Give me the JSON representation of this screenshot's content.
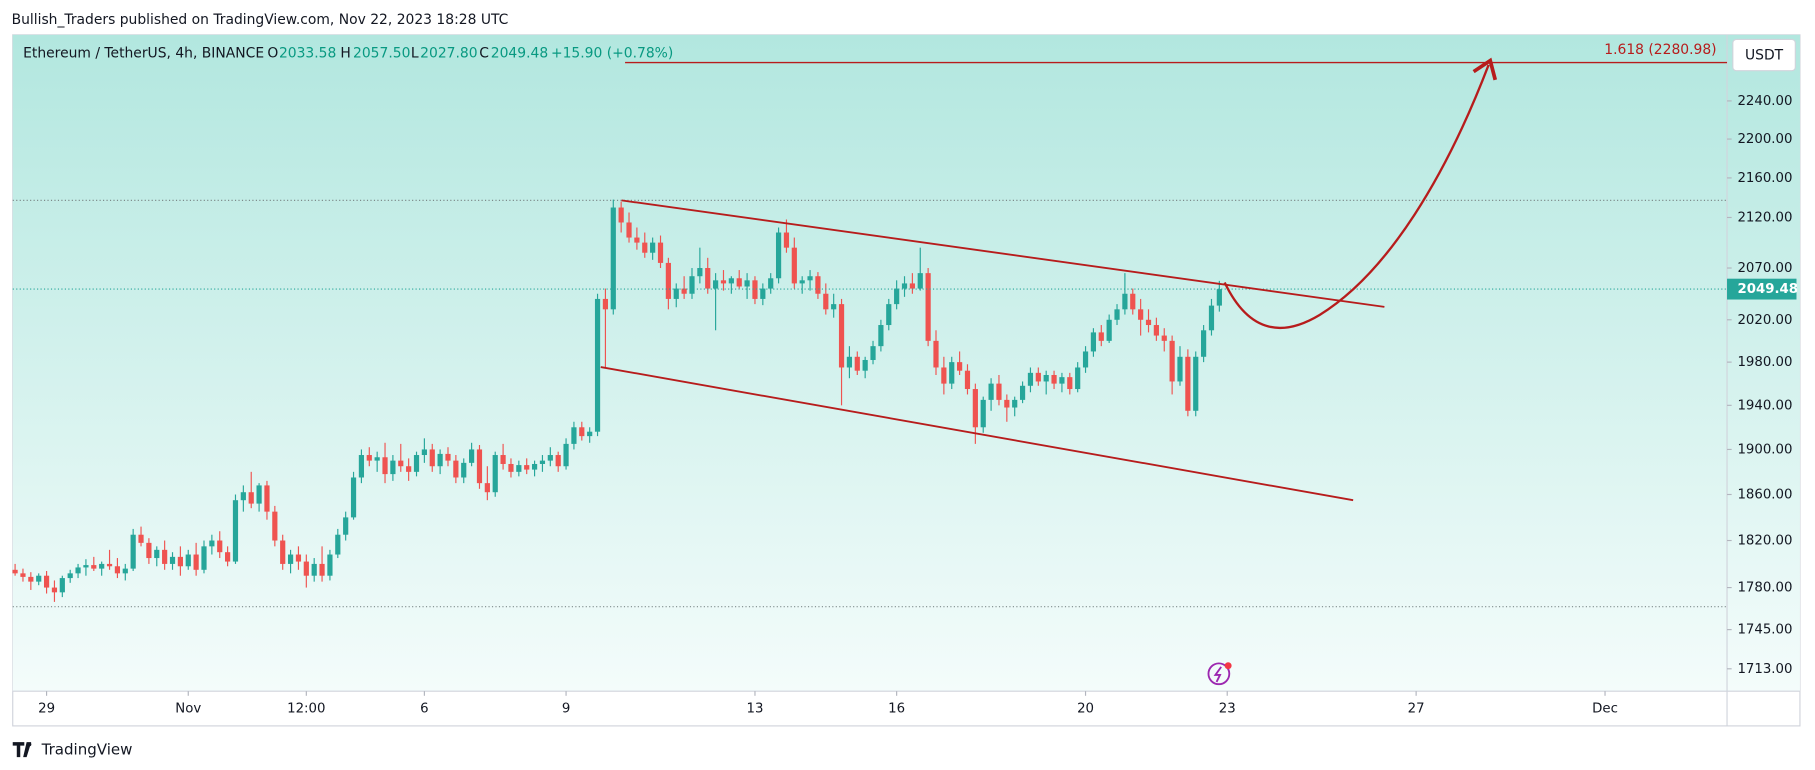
{
  "header": "Bullish_Traders published on TradingView.com, Nov 22, 2023 18:28 UTC",
  "footer": "TradingView",
  "currency_button": "USDT",
  "legend": {
    "symbol": "Ethereum / TetherUS, 4h, BINANCE",
    "open_key": "O",
    "open": "2033.58",
    "high_key": "H",
    "high": "2057.50",
    "low_key": "L",
    "low": "2027.80",
    "close_key": "C",
    "close": "2049.48",
    "change": "+15.90 (+0.78%)"
  },
  "chart_data": {
    "type": "candlestick",
    "log_scale": true,
    "up_color": "#26a69a",
    "down_color": "#ef5350",
    "line_color": "#b71c1c",
    "ylim": [
      1695,
      2311
    ],
    "yticks": [
      {
        "value": 1713,
        "label": "1713.00"
      },
      {
        "value": 1745,
        "label": "1745.00"
      },
      {
        "value": 1780,
        "label": "1780.00"
      },
      {
        "value": 1820,
        "label": "1820.00"
      },
      {
        "value": 1860,
        "label": "1860.00"
      },
      {
        "value": 1900,
        "label": "1900.00"
      },
      {
        "value": 1940,
        "label": "1940.00"
      },
      {
        "value": 1980,
        "label": "1980.00"
      },
      {
        "value": 2020,
        "label": "2020.00"
      },
      {
        "value": 2070,
        "label": "2070.00"
      },
      {
        "value": 2120,
        "label": "2120.00"
      },
      {
        "value": 2160,
        "label": "2160.00"
      },
      {
        "value": 2200,
        "label": "2200.00"
      },
      {
        "value": 2240,
        "label": "2240.00"
      }
    ],
    "xlim": [
      -0.3,
      217.5
    ],
    "xticks": [
      {
        "value": 4,
        "label": "29"
      },
      {
        "value": 22,
        "label": "Nov"
      },
      {
        "value": 37,
        "label": "12:00"
      },
      {
        "value": 52,
        "label": "6"
      },
      {
        "value": 70,
        "label": "9"
      },
      {
        "value": 94,
        "label": "13"
      },
      {
        "value": 112,
        "label": "16"
      },
      {
        "value": 136,
        "label": "20"
      },
      {
        "value": 154,
        "label": "23"
      },
      {
        "value": 178,
        "label": "27"
      },
      {
        "value": 202,
        "label": "Dec"
      }
    ],
    "last_price": {
      "value": 2049.48,
      "label": "2049.48"
    },
    "fib_level": {
      "value": 2280.98,
      "label": "1.618 (2280.98)"
    },
    "ohlc": [
      [
        1795,
        1800,
        1790,
        1792
      ],
      [
        1792,
        1796,
        1785,
        1789
      ],
      [
        1789,
        1793,
        1778,
        1785
      ],
      [
        1785,
        1792,
        1782,
        1790
      ],
      [
        1790,
        1794,
        1775,
        1780
      ],
      [
        1780,
        1786,
        1768,
        1776
      ],
      [
        1776,
        1790,
        1772,
        1788
      ],
      [
        1788,
        1795,
        1784,
        1792
      ],
      [
        1792,
        1800,
        1788,
        1797
      ],
      [
        1797,
        1804,
        1790,
        1799
      ],
      [
        1799,
        1806,
        1794,
        1796
      ],
      [
        1796,
        1802,
        1790,
        1800
      ],
      [
        1800,
        1812,
        1795,
        1798
      ],
      [
        1798,
        1805,
        1788,
        1792
      ],
      [
        1792,
        1800,
        1786,
        1796
      ],
      [
        1796,
        1830,
        1794,
        1825
      ],
      [
        1825,
        1832,
        1815,
        1818
      ],
      [
        1818,
        1822,
        1800,
        1805
      ],
      [
        1805,
        1815,
        1798,
        1812
      ],
      [
        1812,
        1820,
        1795,
        1800
      ],
      [
        1800,
        1810,
        1795,
        1806
      ],
      [
        1806,
        1815,
        1790,
        1798
      ],
      [
        1798,
        1812,
        1795,
        1808
      ],
      [
        1808,
        1818,
        1790,
        1795
      ],
      [
        1795,
        1820,
        1792,
        1815
      ],
      [
        1815,
        1825,
        1808,
        1820
      ],
      [
        1820,
        1828,
        1805,
        1810
      ],
      [
        1810,
        1815,
        1798,
        1802
      ],
      [
        1802,
        1860,
        1800,
        1855
      ],
      [
        1855,
        1868,
        1845,
        1862
      ],
      [
        1862,
        1880,
        1848,
        1852
      ],
      [
        1852,
        1870,
        1845,
        1868
      ],
      [
        1868,
        1872,
        1838,
        1845
      ],
      [
        1845,
        1850,
        1815,
        1820
      ],
      [
        1820,
        1825,
        1795,
        1800
      ],
      [
        1800,
        1812,
        1792,
        1808
      ],
      [
        1808,
        1815,
        1795,
        1802
      ],
      [
        1802,
        1808,
        1780,
        1790
      ],
      [
        1790,
        1805,
        1785,
        1800
      ],
      [
        1800,
        1815,
        1785,
        1790
      ],
      [
        1790,
        1812,
        1786,
        1808
      ],
      [
        1808,
        1830,
        1805,
        1825
      ],
      [
        1825,
        1845,
        1820,
        1840
      ],
      [
        1840,
        1880,
        1838,
        1875
      ],
      [
        1875,
        1900,
        1870,
        1895
      ],
      [
        1895,
        1902,
        1885,
        1890
      ],
      [
        1890,
        1898,
        1880,
        1893
      ],
      [
        1893,
        1906,
        1870,
        1878
      ],
      [
        1878,
        1895,
        1872,
        1890
      ],
      [
        1890,
        1905,
        1880,
        1885
      ],
      [
        1885,
        1892,
        1872,
        1880
      ],
      [
        1880,
        1898,
        1876,
        1895
      ],
      [
        1895,
        1910,
        1888,
        1900
      ],
      [
        1900,
        1905,
        1880,
        1885
      ],
      [
        1885,
        1900,
        1878,
        1896
      ],
      [
        1896,
        1902,
        1885,
        1890
      ],
      [
        1890,
        1895,
        1870,
        1875
      ],
      [
        1875,
        1892,
        1870,
        1888
      ],
      [
        1888,
        1906,
        1885,
        1900
      ],
      [
        1900,
        1904,
        1865,
        1870
      ],
      [
        1870,
        1885,
        1855,
        1862
      ],
      [
        1862,
        1898,
        1858,
        1895
      ],
      [
        1895,
        1905,
        1882,
        1887
      ],
      [
        1887,
        1892,
        1875,
        1880
      ],
      [
        1880,
        1890,
        1876,
        1886
      ],
      [
        1886,
        1892,
        1878,
        1882
      ],
      [
        1882,
        1890,
        1876,
        1887
      ],
      [
        1887,
        1895,
        1880,
        1890
      ],
      [
        1890,
        1902,
        1885,
        1895
      ],
      [
        1895,
        1898,
        1880,
        1885
      ],
      [
        1885,
        1910,
        1882,
        1905
      ],
      [
        1905,
        1925,
        1900,
        1920
      ],
      [
        1920,
        1925,
        1908,
        1912
      ],
      [
        1912,
        1920,
        1906,
        1916
      ],
      [
        1916,
        2045,
        1912,
        2040
      ],
      [
        2040,
        2050,
        1975,
        2030
      ],
      [
        2030,
        2138,
        2025,
        2130
      ],
      [
        2130,
        2136,
        2105,
        2115
      ],
      [
        2115,
        2125,
        2095,
        2100
      ],
      [
        2100,
        2110,
        2088,
        2095
      ],
      [
        2095,
        2105,
        2080,
        2085
      ],
      [
        2085,
        2100,
        2078,
        2095
      ],
      [
        2095,
        2102,
        2070,
        2075
      ],
      [
        2075,
        2080,
        2030,
        2040
      ],
      [
        2040,
        2055,
        2032,
        2050
      ],
      [
        2050,
        2062,
        2040,
        2045
      ],
      [
        2045,
        2070,
        2040,
        2062
      ],
      [
        2062,
        2090,
        2055,
        2070
      ],
      [
        2070,
        2080,
        2045,
        2050
      ],
      [
        2050,
        2065,
        2010,
        2058
      ],
      [
        2058,
        2068,
        2048,
        2055
      ],
      [
        2055,
        2062,
        2045,
        2060
      ],
      [
        2060,
        2068,
        2050,
        2052
      ],
      [
        2052,
        2065,
        2040,
        2058
      ],
      [
        2058,
        2062,
        2035,
        2040
      ],
      [
        2040,
        2055,
        2034,
        2050
      ],
      [
        2050,
        2065,
        2045,
        2060
      ],
      [
        2060,
        2110,
        2055,
        2105
      ],
      [
        2105,
        2118,
        2085,
        2090
      ],
      [
        2090,
        2100,
        2050,
        2055
      ],
      [
        2055,
        2062,
        2045,
        2058
      ],
      [
        2058,
        2068,
        2048,
        2062
      ],
      [
        2062,
        2066,
        2040,
        2045
      ],
      [
        2045,
        2055,
        2025,
        2030
      ],
      [
        2030,
        2045,
        2022,
        2035
      ],
      [
        2035,
        2040,
        1940,
        1975
      ],
      [
        1975,
        1995,
        1965,
        1985
      ],
      [
        1985,
        1990,
        1968,
        1972
      ],
      [
        1972,
        1985,
        1965,
        1982
      ],
      [
        1982,
        2000,
        1978,
        1995
      ],
      [
        1995,
        2020,
        1990,
        2015
      ],
      [
        2015,
        2040,
        2010,
        2035
      ],
      [
        2035,
        2058,
        2030,
        2050
      ],
      [
        2050,
        2062,
        2042,
        2055
      ],
      [
        2055,
        2065,
        2045,
        2050
      ],
      [
        2050,
        2090,
        2048,
        2065
      ],
      [
        2065,
        2070,
        1995,
        2000
      ],
      [
        2000,
        2010,
        1968,
        1975
      ],
      [
        1975,
        1985,
        1950,
        1960
      ],
      [
        1960,
        1985,
        1955,
        1980
      ],
      [
        1980,
        1990,
        1968,
        1972
      ],
      [
        1972,
        1978,
        1950,
        1955
      ],
      [
        1955,
        1960,
        1905,
        1920
      ],
      [
        1920,
        1948,
        1915,
        1945
      ],
      [
        1945,
        1965,
        1935,
        1960
      ],
      [
        1960,
        1968,
        1940,
        1945
      ],
      [
        1945,
        1950,
        1925,
        1938
      ],
      [
        1938,
        1948,
        1930,
        1945
      ],
      [
        1945,
        1962,
        1942,
        1958
      ],
      [
        1958,
        1975,
        1952,
        1970
      ],
      [
        1970,
        1975,
        1958,
        1962
      ],
      [
        1962,
        1972,
        1950,
        1968
      ],
      [
        1968,
        1972,
        1955,
        1960
      ],
      [
        1960,
        1970,
        1952,
        1966
      ],
      [
        1966,
        1970,
        1950,
        1955
      ],
      [
        1955,
        1980,
        1952,
        1975
      ],
      [
        1975,
        1995,
        1970,
        1990
      ],
      [
        1990,
        2012,
        1985,
        2008
      ],
      [
        2008,
        2015,
        1995,
        2000
      ],
      [
        2000,
        2025,
        1998,
        2020
      ],
      [
        2020,
        2035,
        2015,
        2030
      ],
      [
        2030,
        2065,
        2025,
        2045
      ],
      [
        2045,
        2050,
        2025,
        2030
      ],
      [
        2030,
        2040,
        2005,
        2020
      ],
      [
        2020,
        2030,
        2008,
        2015
      ],
      [
        2015,
        2022,
        2000,
        2005
      ],
      [
        2005,
        2012,
        1990,
        2000
      ],
      [
        2000,
        2005,
        1950,
        1962
      ],
      [
        1962,
        1995,
        1958,
        1985
      ],
      [
        1985,
        1992,
        1930,
        1935
      ],
      [
        1935,
        1990,
        1930,
        1985
      ],
      [
        1985,
        2015,
        1980,
        2010
      ],
      [
        2010,
        2040,
        2005,
        2033.58
      ],
      [
        2033.58,
        2057.5,
        2027.8,
        2049.48
      ]
    ]
  }
}
